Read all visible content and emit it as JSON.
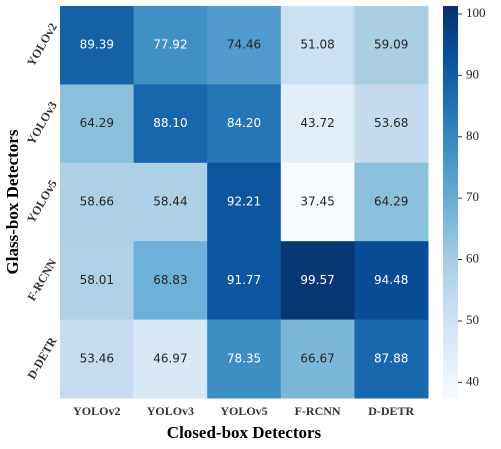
{
  "chart_data": {
    "type": "heatmap",
    "xlabel": "Closed-box Detectors",
    "ylabel": "Glass-box Detectors",
    "x": [
      "YOLOv2",
      "YOLOv3",
      "YOLOv5",
      "F-RCNN",
      "D-DETR"
    ],
    "y": [
      "YOLOv2",
      "YOLOv3",
      "YOLOv5",
      "F-RCNN",
      "D-DETR"
    ],
    "values": [
      [
        89.39,
        77.92,
        74.46,
        51.08,
        59.09
      ],
      [
        64.29,
        88.1,
        84.2,
        43.72,
        53.68
      ],
      [
        58.66,
        58.44,
        92.21,
        37.45,
        64.29
      ],
      [
        58.01,
        68.83,
        91.77,
        99.57,
        94.48
      ],
      [
        53.46,
        46.97,
        78.35,
        66.67,
        87.88
      ]
    ],
    "value_labels": [
      [
        "89.39",
        "77.92",
        "74.46",
        "51.08",
        "59.09"
      ],
      [
        "64.29",
        "88.10",
        "84.20",
        "43.72",
        "53.68"
      ],
      [
        "58.66",
        "58.44",
        "92.21",
        "37.45",
        "64.29"
      ],
      [
        "58.01",
        "68.83",
        "91.77",
        "99.57",
        "94.48"
      ],
      [
        "53.46",
        "46.97",
        "78.35",
        "66.67",
        "87.88"
      ]
    ],
    "colormap": [
      "#f7fbff",
      "#deebf7",
      "#c6dbef",
      "#9ecae1",
      "#6baed6",
      "#4292c6",
      "#2171b5",
      "#08519c",
      "#08306b"
    ],
    "clim": [
      37.45,
      101.3
    ],
    "cticks": [
      40,
      50,
      60,
      70,
      80,
      90,
      100
    ]
  }
}
